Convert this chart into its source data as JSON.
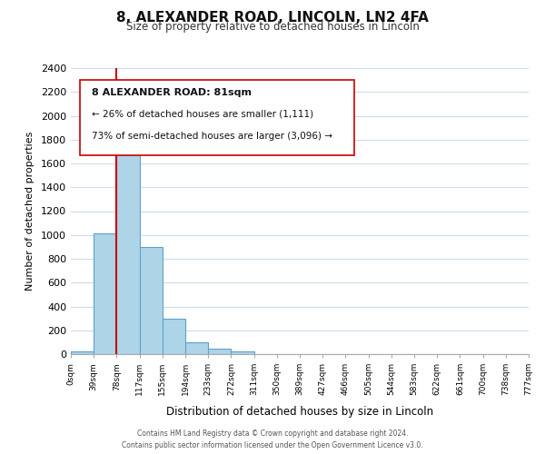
{
  "title": "8, ALEXANDER ROAD, LINCOLN, LN2 4FA",
  "subtitle": "Size of property relative to detached houses in Lincoln",
  "xlabel": "Distribution of detached houses by size in Lincoln",
  "ylabel": "Number of detached properties",
  "bin_labels": [
    "0sqm",
    "39sqm",
    "78sqm",
    "117sqm",
    "155sqm",
    "194sqm",
    "233sqm",
    "272sqm",
    "311sqm",
    "350sqm",
    "389sqm",
    "427sqm",
    "466sqm",
    "505sqm",
    "544sqm",
    "583sqm",
    "622sqm",
    "661sqm",
    "700sqm",
    "738sqm",
    "777sqm"
  ],
  "bar_values": [
    20,
    1010,
    1860,
    900,
    300,
    100,
    45,
    20,
    0,
    0,
    0,
    0,
    0,
    0,
    0,
    0,
    0,
    0,
    0,
    0
  ],
  "bar_color": "#aed4e8",
  "bar_edge_color": "#5ba3c9",
  "property_line_x": 2,
  "property_line_color": "#cc0000",
  "ylim": [
    0,
    2400
  ],
  "yticks": [
    0,
    200,
    400,
    600,
    800,
    1000,
    1200,
    1400,
    1600,
    1800,
    2000,
    2200,
    2400
  ],
  "annotation_title": "8 ALEXANDER ROAD: 81sqm",
  "annotation_line1": "← 26% of detached houses are smaller (1,111)",
  "annotation_line2": "73% of semi-detached houses are larger (3,096) →",
  "footer_line1": "Contains HM Land Registry data © Crown copyright and database right 2024.",
  "footer_line2": "Contains public sector information licensed under the Open Government Licence v3.0.",
  "background_color": "#ffffff",
  "grid_color": "#ccddee"
}
